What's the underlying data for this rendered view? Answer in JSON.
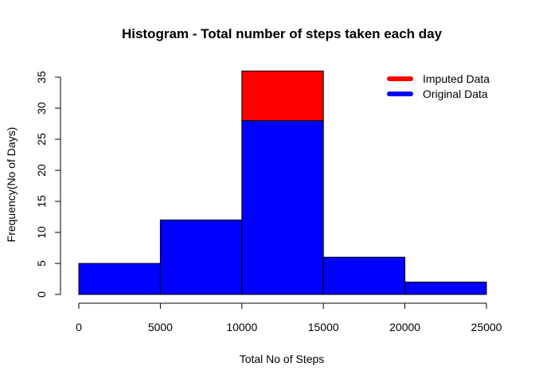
{
  "chart_data": {
    "type": "bar",
    "subtype": "stacked-histogram",
    "title": "Histogram - Total number of steps taken each day",
    "xlabel": "Total No of Steps",
    "ylabel": "Frequency(No of Days)",
    "xlim": [
      0,
      25000
    ],
    "ylim": [
      0,
      35
    ],
    "x_ticks": [
      "0",
      "5000",
      "10000",
      "15000",
      "20000",
      "25000"
    ],
    "y_ticks": [
      "0",
      "5",
      "10",
      "15",
      "20",
      "25",
      "30",
      "35"
    ],
    "bins": [
      [
        0,
        5000
      ],
      [
        5000,
        10000
      ],
      [
        10000,
        15000
      ],
      [
        15000,
        20000
      ],
      [
        20000,
        25000
      ]
    ],
    "series": [
      {
        "name": "Original Data",
        "color": "#0000ff",
        "values": [
          5,
          12,
          28,
          6,
          2
        ]
      },
      {
        "name": "Imputed Data",
        "color": "#ff0000",
        "values": [
          0,
          0,
          8,
          0,
          0
        ]
      }
    ],
    "legend": {
      "position": "top-right",
      "entries": [
        {
          "label": "Imputed Data",
          "color": "#ff0000"
        },
        {
          "label": "Original Data",
          "color": "#0000ff"
        }
      ]
    },
    "grid": false
  }
}
